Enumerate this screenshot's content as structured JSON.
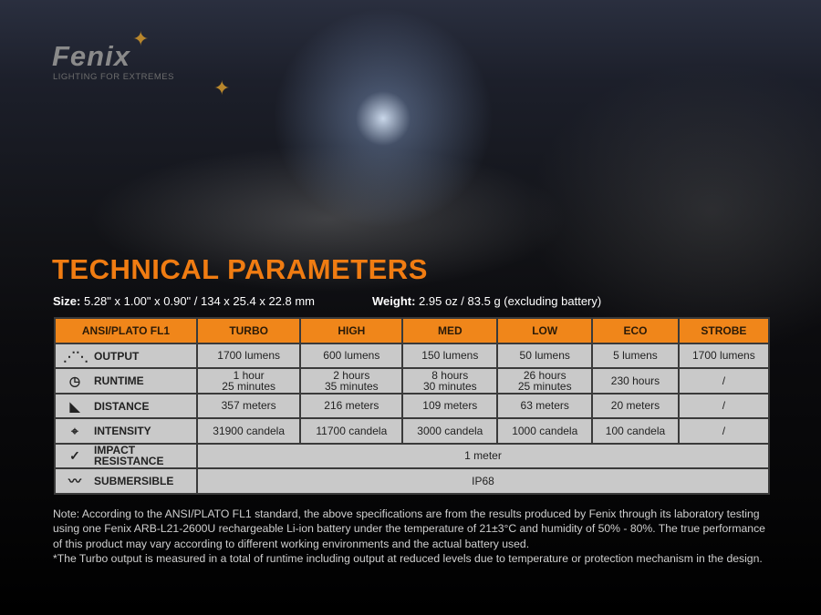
{
  "brand": {
    "logo": "Fenix",
    "tagline": "LIGHTING FOR EXTREMES"
  },
  "title": "TECHNICAL PARAMETERS",
  "size": {
    "label": "Size:",
    "value": "5.28\" x 1.00\" x 0.90\" / 134 x 25.4 x 22.8 mm"
  },
  "weight": {
    "label": "Weight:",
    "value": "2.95 oz / 83.5 g (excluding battery)"
  },
  "accent": "#f0861a",
  "table": {
    "headers": [
      "ANSI/PLATO FL1",
      "TURBO",
      "HIGH",
      "MED",
      "LOW",
      "ECO",
      "STROBE"
    ],
    "rows": [
      {
        "icon": "output-rays-icon",
        "label": "OUTPUT",
        "cells": [
          "1700 lumens",
          "600 lumens",
          "150 lumens",
          "50 lumens",
          "5 lumens",
          "1700 lumens"
        ]
      },
      {
        "icon": "clock-icon",
        "label": "RUNTIME",
        "cells": [
          [
            "1 hour",
            "25 minutes"
          ],
          [
            "2 hours",
            "35 minutes"
          ],
          [
            "8 hours",
            "30 minutes"
          ],
          [
            "26 hours",
            "25 minutes"
          ],
          "230 hours",
          "/"
        ]
      },
      {
        "icon": "beam-distance-icon",
        "label": "DISTANCE",
        "cells": [
          "357 meters",
          "216 meters",
          "109 meters",
          "63 meters",
          "20 meters",
          "/"
        ]
      },
      {
        "icon": "crosshair-intensity-icon",
        "label": "INTENSITY",
        "cells": [
          "31900 candela",
          "11700 candela",
          "3000 candela",
          "1000 candela",
          "100 candela",
          "/"
        ]
      }
    ],
    "impact": {
      "icon": "impact-icon",
      "label": [
        "IMPACT",
        "RESISTANCE"
      ],
      "value": "1 meter"
    },
    "submersible": {
      "icon": "water-icon",
      "label": "SUBMERSIBLE",
      "value": "IP68"
    }
  },
  "notes": [
    "Note: According to the ANSI/PLATO FL1 standard, the above specifications are from the results produced by Fenix through its laboratory testing using one Fenix ARB-L21-2600U rechargeable Li-ion battery under the temperature of 21±3°C and humidity of 50% - 80%. The true performance of this product may vary according to different working environments and the actual battery used.",
    "*The Turbo output is measured in a total of runtime including output at reduced levels due to temperature or protection mechanism in the design."
  ]
}
